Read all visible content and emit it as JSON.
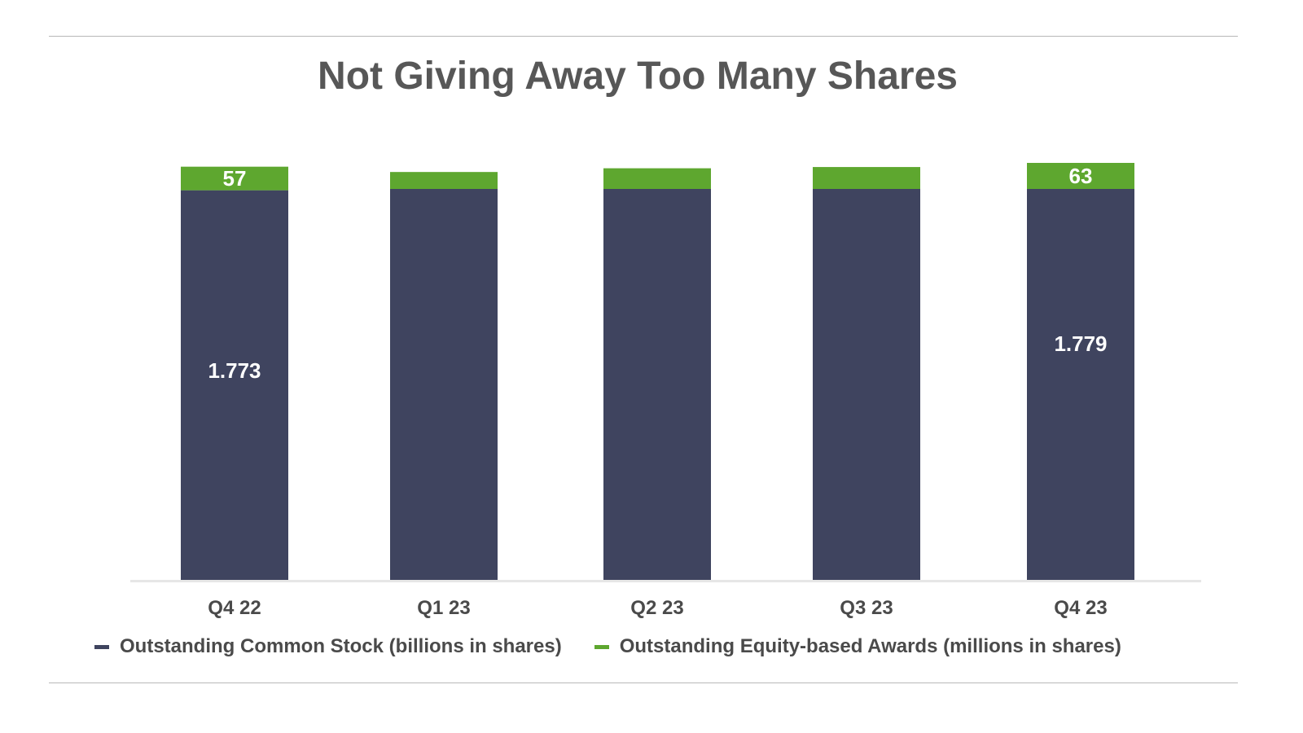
{
  "title": "Not Giving Away Too Many Shares",
  "colors": {
    "common": "#3f445f",
    "awards": "#5ea72f",
    "axis": "#e6e6e6",
    "text": "#4a4a4a"
  },
  "chart_data": {
    "type": "bar",
    "stacked": true,
    "title": "Not Giving Away Too Many Shares",
    "categories": [
      "Q4 22",
      "Q1 23",
      "Q2 23",
      "Q3 23",
      "Q4 23"
    ],
    "series": [
      {
        "name": "Outstanding Common Stock (billions in shares)",
        "key": "common",
        "values": [
          1.773,
          1.779,
          1.779,
          1.779,
          1.779
        ],
        "labels": [
          "1.773",
          "",
          "",
          "",
          "1.779"
        ]
      },
      {
        "name": "Outstanding Equity-based Awards (millions in shares)",
        "key": "awards",
        "values": [
          57,
          41,
          50,
          53,
          63
        ],
        "labels": [
          "57",
          "",
          "",
          "",
          "63"
        ]
      }
    ],
    "legend_position": "bottom",
    "grid": false
  }
}
